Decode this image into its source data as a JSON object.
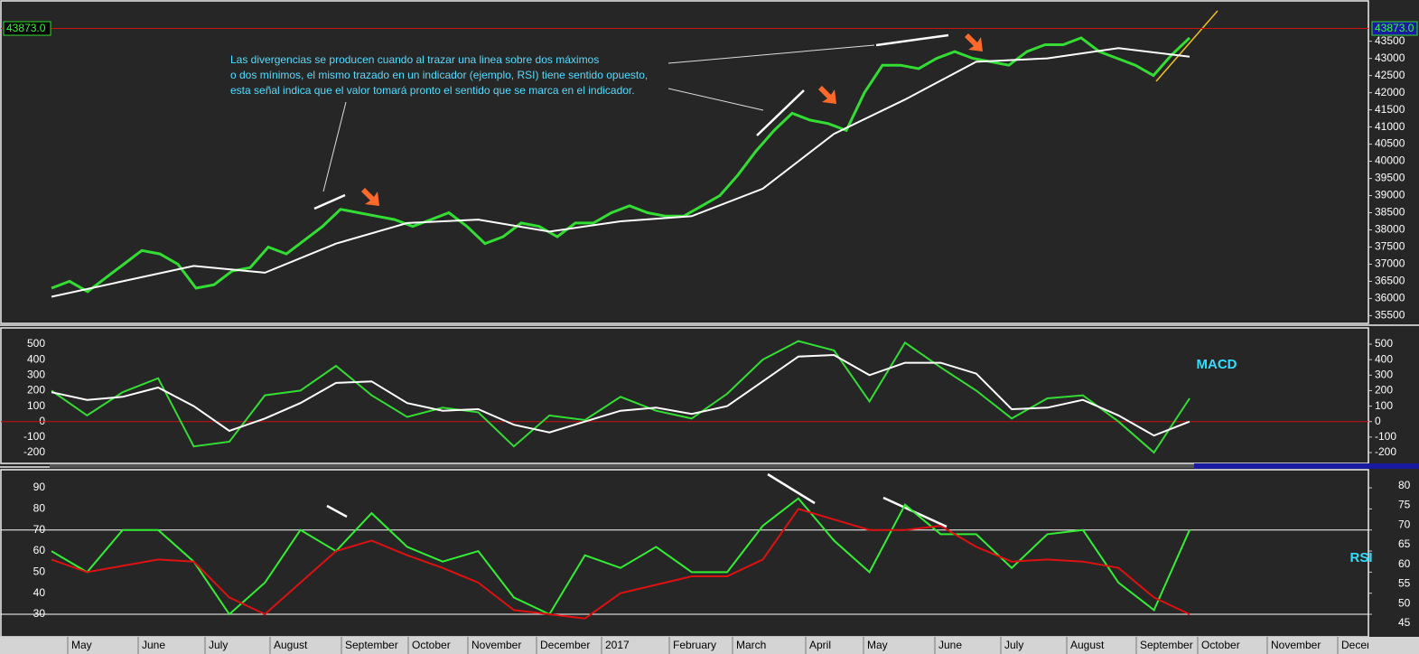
{
  "chart_data": [
    {
      "type": "line",
      "annotation": [
        "Las divergencias se producen cuando al trazar una linea sobre dos máximos",
        "o dos mínimos, el mismo trazado en un indicador (ejemplo, RSI) tiene sentido opuesto,",
        "esta señal indica que el valor tomará pronto el sentido que se marca en el indicador."
      ],
      "last_value": {
        "value": 43873,
        "label": "43873.0"
      },
      "ylim": [
        35300,
        44650
      ],
      "yticks": [
        35500,
        36000,
        36500,
        37000,
        37500,
        38000,
        38500,
        39000,
        39500,
        40000,
        40500,
        41000,
        41500,
        42000,
        42500,
        43000,
        43500
      ],
      "series": [
        {
          "color": "#33dd33",
          "values": [
            36300,
            36500,
            36200,
            36600,
            37000,
            37400,
            37300,
            37000,
            36300,
            36400,
            36800,
            36900,
            37500,
            37300,
            37700,
            38100,
            38600,
            38500,
            38400,
            38300,
            38100,
            38300,
            38500,
            38100,
            37600,
            37800,
            38200,
            38100,
            37800,
            38200,
            38200,
            38500,
            38700,
            38500,
            38400,
            38400,
            38700,
            39000,
            39600,
            40300,
            40900,
            41400,
            41200,
            41100,
            40900,
            42000,
            42800,
            42800,
            42700,
            43000,
            43200,
            43000,
            42900,
            42800,
            43200,
            43400,
            43400,
            43600,
            43200,
            43000,
            42800,
            42500,
            43100,
            43600
          ]
        },
        {
          "color": "#ffffff",
          "values": [
            36050,
            36500,
            36950,
            36750,
            37600,
            38200,
            38300,
            37950,
            38250,
            38400,
            39200,
            40800,
            41800,
            42900,
            43000,
            43300,
            43050
          ]
        }
      ]
    },
    {
      "type": "line",
      "title": "MACD",
      "ylim": [
        -264,
        605
      ],
      "yticks": [
        -200,
        -100,
        0,
        100,
        200,
        300,
        400,
        500
      ],
      "hlines": [
        0
      ],
      "series": [
        {
          "color": "#33dd33",
          "values": [
            200,
            40,
            190,
            280,
            -160,
            -130,
            170,
            200,
            360,
            170,
            30,
            90,
            60,
            -160,
            40,
            10,
            160,
            70,
            20,
            180,
            400,
            520,
            460,
            130,
            510,
            350,
            200,
            20,
            150,
            170,
            0,
            -200,
            150
          ]
        },
        {
          "color": "#ffffff",
          "values": [
            190,
            140,
            160,
            220,
            100,
            -60,
            20,
            120,
            250,
            260,
            120,
            70,
            80,
            -20,
            -70,
            0,
            70,
            90,
            50,
            100,
            260,
            420,
            430,
            300,
            380,
            380,
            310,
            80,
            90,
            140,
            40,
            -90,
            0
          ]
        }
      ]
    },
    {
      "type": "line",
      "title": "RSI",
      "ylim": [
        19.3,
        98.6
      ],
      "yticks": [
        30,
        40,
        50,
        60,
        70,
        80,
        90
      ],
      "y2lim": [
        41.5,
        84.1
      ],
      "y2ticks": [
        45,
        50,
        55,
        60,
        65,
        70,
        75,
        80
      ],
      "hlines": [
        30,
        70
      ],
      "series": [
        {
          "color": "#33ee33",
          "values": [
            60,
            50,
            70,
            70,
            55,
            30,
            45,
            70,
            60,
            78,
            62,
            55,
            60,
            38,
            30,
            58,
            52,
            62,
            50,
            50,
            72,
            85,
            65,
            50,
            82,
            68,
            68,
            52,
            68,
            70,
            45,
            32,
            70
          ]
        },
        {
          "color": "#dd1111",
          "values": [
            56,
            50,
            53,
            56,
            55,
            38,
            30,
            45,
            60,
            65,
            58,
            52,
            45,
            32,
            30,
            28,
            40,
            44,
            48,
            48,
            56,
            80,
            75,
            70,
            70,
            72,
            62,
            55,
            56,
            55,
            52,
            38,
            30
          ]
        }
      ]
    }
  ],
  "x_axis": {
    "labels": [
      "May",
      "June",
      "July",
      "August",
      "September",
      "October",
      "November",
      "December",
      "2017",
      "February",
      "March",
      "April",
      "May",
      "June",
      "July",
      "August",
      "September",
      "October",
      "November",
      "December"
    ]
  }
}
